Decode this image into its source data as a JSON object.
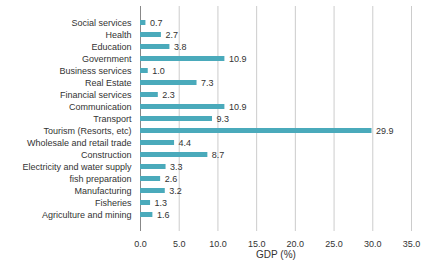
{
  "chart_data": {
    "type": "bar",
    "orientation": "horizontal",
    "categories": [
      "Social services",
      "Health",
      "Education",
      "Government",
      "Business services",
      "Real Estate",
      "Financial services",
      "Communication",
      "Transport",
      "Tourism (Resorts, etc)",
      "Wholesale and retail trade",
      "Construction",
      "Electricity and water supply",
      "fish preparation",
      "Manufacturing",
      "Fisheries",
      "Agriculture and mining"
    ],
    "values": [
      0.7,
      2.7,
      3.8,
      10.9,
      1.0,
      7.3,
      2.3,
      10.9,
      9.3,
      29.9,
      4.4,
      8.7,
      3.3,
      2.6,
      3.2,
      1.3,
      1.6
    ],
    "value_labels": [
      "0.7",
      "2.7",
      "3.8",
      "10.9",
      "1.0",
      "7.3",
      "2.3",
      "10.9",
      "9.3",
      "29.9",
      "4.4",
      "8.7",
      "3.3",
      "2.6",
      "3.2",
      "1.3",
      "1.6"
    ],
    "data_labels": true,
    "color": "#4aaabb",
    "x_label": "GDP (%)",
    "xlim": [
      0,
      35
    ],
    "xticks": [
      {
        "value": 0,
        "label": "0.0"
      },
      {
        "value": 5,
        "label": "5.0"
      },
      {
        "value": 10,
        "label": "10.0"
      },
      {
        "value": 15,
        "label": "15.0"
      },
      {
        "value": 20,
        "label": "20.0"
      },
      {
        "value": 25,
        "label": "25.0"
      },
      {
        "value": 30,
        "label": "30.0"
      },
      {
        "value": 35,
        "label": "35.0"
      }
    ],
    "grid": true
  }
}
